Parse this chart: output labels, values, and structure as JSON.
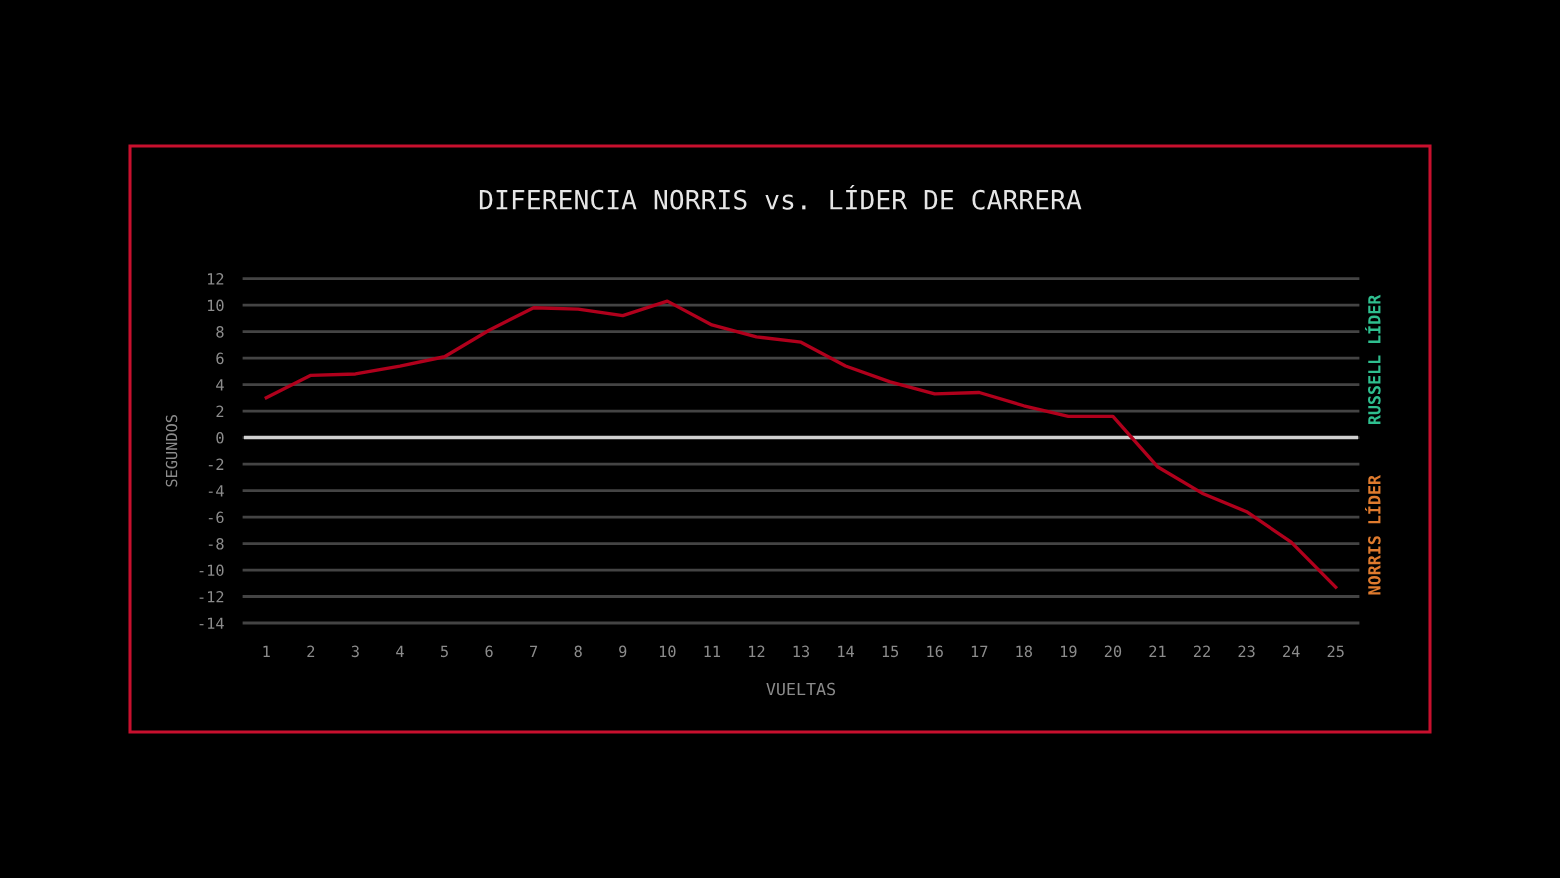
{
  "chart_data": {
    "type": "line",
    "title": "DIFERENCIA NORRIS vs. LÍDER DE CARRERA",
    "xlabel": "VUELTAS",
    "ylabel": "SEGUNDOS",
    "x": [
      1,
      2,
      3,
      4,
      5,
      6,
      7,
      8,
      9,
      10,
      11,
      12,
      13,
      14,
      15,
      16,
      17,
      18,
      19,
      20,
      21,
      22,
      23,
      24,
      25
    ],
    "series": [
      {
        "color": "#b0001c",
        "values": [
          3.0,
          4.7,
          4.8,
          5.4,
          6.1,
          8.1,
          9.8,
          9.7,
          9.2,
          10.3,
          8.5,
          7.6,
          7.2,
          5.4,
          4.2,
          3.3,
          3.4,
          2.4,
          1.6,
          1.6,
          -2.2,
          -4.2,
          -5.6,
          -7.9,
          -11.3
        ]
      }
    ],
    "xlim": [
      0.5,
      25.5
    ],
    "xticks": [
      1,
      2,
      3,
      4,
      5,
      6,
      7,
      8,
      9,
      10,
      11,
      12,
      13,
      14,
      15,
      16,
      17,
      18,
      19,
      20,
      21,
      22,
      23,
      24,
      25
    ],
    "ylim": [
      -14,
      12
    ],
    "yticks": [
      -14,
      -12,
      -10,
      -8,
      -6,
      -4,
      -2,
      0,
      2,
      4,
      6,
      8,
      10,
      12
    ],
    "grid": "y",
    "line_style": "solid",
    "ref_lines": [
      {
        "axis": "y",
        "value": 0,
        "color": "#d0d0d0"
      }
    ],
    "annotations": [
      "RUSSELL LÍDER",
      "NORRIS LÍDER"
    ]
  }
}
